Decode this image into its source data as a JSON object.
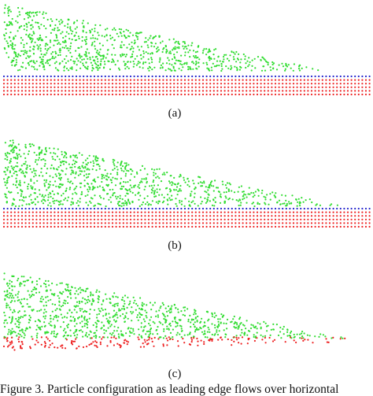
{
  "figure": {
    "panels": [
      {
        "label": "(a)"
      },
      {
        "label": "(b)"
      },
      {
        "label": "(c)"
      }
    ],
    "caption": "Figure 3. Particle configuration as leading edge flows over horizontal"
  }
}
